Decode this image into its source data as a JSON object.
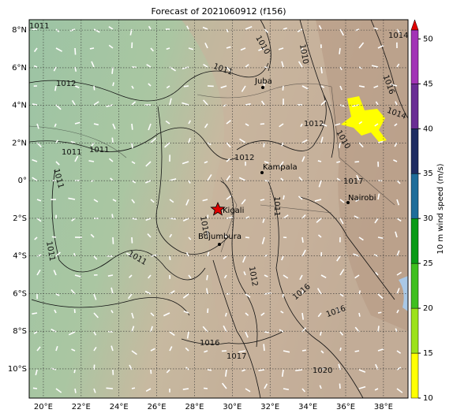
{
  "map": {
    "title": "Forecast of 2021060912 (f156)",
    "xlim": [
      19.25,
      39.3
    ],
    "ylim": [
      -11.55,
      8.55
    ],
    "xticks": [
      {
        "value": 20,
        "label": "20°E"
      },
      {
        "value": 22,
        "label": "22°E"
      },
      {
        "value": 24,
        "label": "24°E"
      },
      {
        "value": 26,
        "label": "26°E"
      },
      {
        "value": 28,
        "label": "28°E"
      },
      {
        "value": 30,
        "label": "30°E"
      },
      {
        "value": 32,
        "label": "32°E"
      },
      {
        "value": 34,
        "label": "34°E"
      },
      {
        "value": 36,
        "label": "36°E"
      },
      {
        "value": 38,
        "label": "38°E"
      }
    ],
    "yticks": [
      {
        "value": 8,
        "label": "8°N"
      },
      {
        "value": 6,
        "label": "6°N"
      },
      {
        "value": 4,
        "label": "4°N"
      },
      {
        "value": 2,
        "label": "2°N"
      },
      {
        "value": 0,
        "label": "0°"
      },
      {
        "value": -2,
        "label": "2°S"
      },
      {
        "value": -4,
        "label": "4°S"
      },
      {
        "value": -6,
        "label": "6°S"
      },
      {
        "value": -8,
        "label": "8°S"
      },
      {
        "value": -10,
        "label": "10°S"
      }
    ],
    "grid": true,
    "cities": [
      "Juba",
      "Kampala",
      "Nairobi",
      "Kigali",
      "Bujumbura"
    ],
    "isobar_labels": [
      "1011",
      "1012",
      "1011",
      "1011",
      "1011",
      "1010",
      "1010",
      "1011",
      "1012",
      "1012",
      "1011",
      "1011",
      "1016",
      "1012",
      "1014",
      "1016",
      "1016",
      "1017",
      "1016",
      "1017",
      "1016",
      "1014",
      "1020",
      "1011",
      "1010"
    ],
    "colorbar": {
      "label": "10 m wind speed (m/s)",
      "ylim": [
        10,
        51
      ],
      "yticks": [
        10,
        15,
        20,
        25,
        30,
        35,
        40,
        45,
        50
      ],
      "colors": [
        "#ffff00",
        "#9de21a",
        "#3fbf1f",
        "#0a9a16",
        "#1f6d9a",
        "#1e2c62",
        "#6a2d94",
        "#a234b6"
      ],
      "extend_color": "#e00000"
    }
  }
}
